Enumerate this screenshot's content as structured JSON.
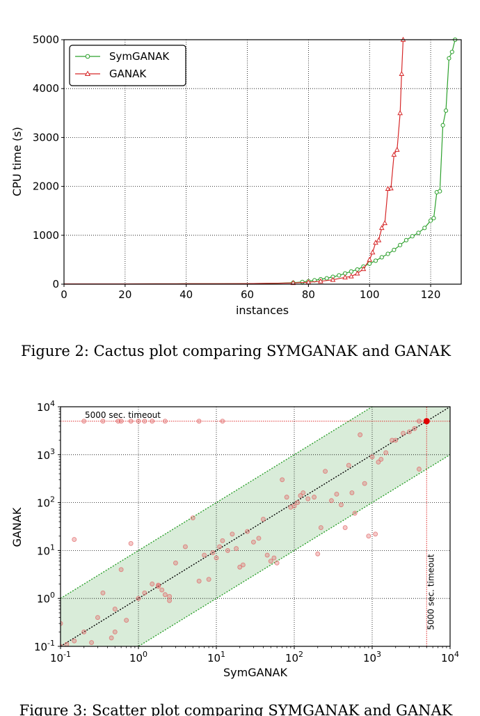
{
  "chart_data": [
    {
      "type": "line",
      "xlabel": "instances",
      "ylabel": "CPU time (s)",
      "xlim": [
        0,
        130
      ],
      "ylim": [
        0,
        5000
      ],
      "xticks": [
        0,
        20,
        40,
        60,
        80,
        100,
        120
      ],
      "yticks": [
        0,
        1000,
        2000,
        3000,
        4000,
        5000
      ],
      "grid": true,
      "legend": "top-left",
      "series": [
        {
          "name": "SymGANAK",
          "color": "#2ca02c",
          "marker": "circle",
          "x": [
            0,
            10,
            20,
            30,
            40,
            50,
            60,
            70,
            75,
            78,
            80,
            82,
            84,
            86,
            88,
            90,
            92,
            94,
            96,
            98,
            100,
            102,
            104,
            106,
            108,
            110,
            112,
            114,
            116,
            118,
            120,
            121,
            122,
            123,
            124,
            125,
            126,
            127,
            128
          ],
          "values": [
            5,
            5,
            6,
            7,
            8,
            10,
            12,
            20,
            30,
            45,
            60,
            80,
            100,
            120,
            150,
            180,
            220,
            260,
            300,
            360,
            420,
            480,
            550,
            620,
            700,
            800,
            900,
            980,
            1050,
            1150,
            1300,
            1350,
            1880,
            1900,
            3250,
            3550,
            4620,
            4750,
            5000
          ]
        },
        {
          "name": "GANAK",
          "color": "#d62728",
          "marker": "triangle",
          "x": [
            0,
            10,
            20,
            30,
            40,
            50,
            60,
            70,
            75,
            80,
            84,
            88,
            92,
            94,
            96,
            98,
            100,
            101,
            102,
            103,
            104,
            105,
            106,
            107,
            108,
            109,
            110,
            110.5,
            111
          ],
          "values": [
            5,
            5,
            6,
            7,
            8,
            10,
            12,
            18,
            25,
            40,
            60,
            90,
            140,
            160,
            220,
            310,
            500,
            650,
            850,
            900,
            1150,
            1250,
            1950,
            1960,
            2650,
            2750,
            3500,
            4300,
            5000
          ]
        }
      ]
    },
    {
      "type": "scatter",
      "xlabel": "SymGANAK",
      "ylabel": "GANAK",
      "xscale": "log",
      "yscale": "log",
      "xlim": [
        0.1,
        10000
      ],
      "ylim": [
        0.1,
        10000
      ],
      "grid": true,
      "annotations": [
        "5000 sec. timeout",
        "5000 sec. timeout"
      ],
      "x": [
        0.1,
        0.1,
        0.12,
        0.15,
        0.2,
        0.25,
        0.3,
        0.35,
        0.45,
        0.5,
        0.6,
        0.7,
        0.8,
        1.0,
        1.2,
        1.5,
        1.8,
        2.0,
        2.2,
        2.5,
        3.0,
        4.0,
        5.0,
        6.0,
        7.0,
        8.0,
        9.0,
        10.0,
        11.0,
        12.0,
        14.0,
        16.0,
        18.0,
        20.0,
        22.0,
        25.0,
        30.0,
        35.0,
        40.0,
        45.0,
        50.0,
        55.0,
        60.0,
        70.0,
        80.0,
        90.0,
        100.0,
        110.0,
        120.0,
        130.0,
        150.0,
        180.0,
        200.0,
        220.0,
        250.0,
        300.0,
        350.0,
        400.0,
        450.0,
        500.0,
        550.0,
        600.0,
        700.0,
        800.0,
        900.0,
        1000.0,
        1100.0,
        1200.0,
        1300.0,
        1500.0,
        1800.0,
        2000.0,
        2500.0,
        3000.0,
        3500.0,
        4000.0,
        5000.0,
        0.15,
        0.2,
        0.55,
        1.0,
        1.2,
        1.5,
        0.35,
        0.6,
        0.8,
        6.0,
        12.0,
        4000.0,
        0.5,
        1.8,
        2.2,
        2.5
      ],
      "y": [
        0.1,
        0.3,
        0.11,
        0.13,
        0.2,
        0.12,
        0.4,
        1.3,
        0.15,
        0.6,
        4.0,
        0.35,
        14.0,
        1.0,
        1.3,
        2.0,
        1.8,
        1.5,
        1.2,
        0.9,
        5.5,
        12.0,
        48.0,
        2.3,
        8.0,
        2.5,
        9.0,
        7.0,
        12.0,
        16.0,
        10.0,
        22.0,
        11.0,
        4.5,
        5.0,
        25.0,
        15.0,
        18.0,
        45.0,
        8.0,
        6.0,
        7.0,
        5.5,
        300.0,
        130.0,
        80.0,
        85.0,
        100.0,
        140.0,
        160.0,
        120.0,
        130.0,
        8.5,
        30.0,
        450.0,
        110.0,
        150.0,
        90.0,
        30.0,
        600.0,
        160.0,
        60.0,
        2600.0,
        250.0,
        20.0,
        900.0,
        22.0,
        700.0,
        800.0,
        1100.0,
        2000.0,
        2000.0,
        2800.0,
        3000.0,
        3500.0,
        5000.0,
        5000.0,
        17.0,
        5000.0,
        5000.0,
        5000.0,
        5000.0,
        5000.0,
        5000.0,
        5000.0,
        5000.0,
        5000.0,
        5000.0,
        500.0,
        0.2,
        1.9,
        5000.0,
        1.1
      ],
      "highlight": {
        "x": 5000.0,
        "y": 5000.0
      },
      "band_factor": 10,
      "colors": {
        "points": "#e06666",
        "diagonal": "#000000",
        "band": "#d9ecd9",
        "band_edge": "#2ca02c",
        "timeout": "#e03030"
      }
    }
  ],
  "captions": {
    "fig2": "Figure 2: Cactus plot comparing SYMGANAK and GANAK",
    "fig3": "Figure 3: Scatter plot comparing SYMGANAK and GANAK"
  }
}
